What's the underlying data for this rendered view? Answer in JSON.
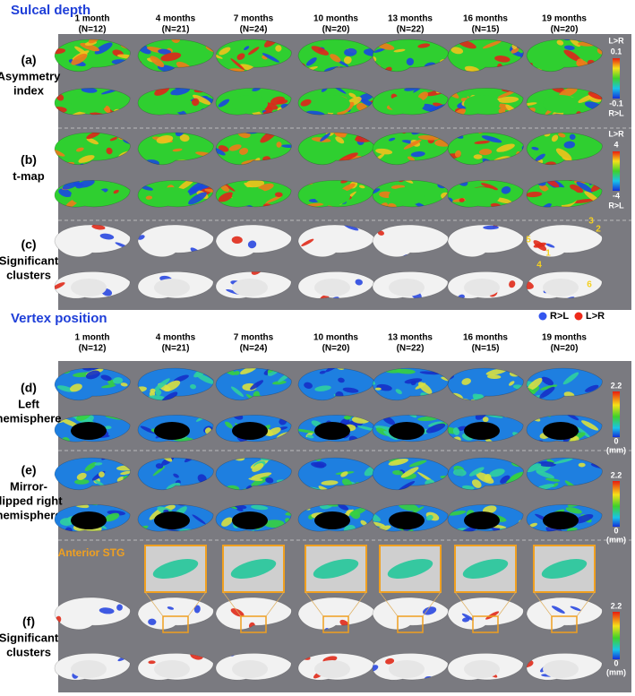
{
  "sections": [
    {
      "title": "Sulcal depth",
      "columns": [
        {
          "month": "1 month",
          "n": "(N=12)"
        },
        {
          "month": "4 months",
          "n": "(N=21)"
        },
        {
          "month": "7 months",
          "n": "(N=24)"
        },
        {
          "month": "10 months",
          "n": "(N=20)"
        },
        {
          "month": "13 months",
          "n": "(N=22)"
        },
        {
          "month": "16 months",
          "n": "(N=15)"
        },
        {
          "month": "19 months",
          "n": "(N=20)"
        }
      ],
      "rows": [
        {
          "letter": "(a)",
          "label": [
            "Asymmetry",
            "index"
          ],
          "colorbar": {
            "top_sign": "L>R",
            "max": "0.1",
            "min": "-0.1",
            "bottom_sign": "R>L"
          }
        },
        {
          "letter": "(b)",
          "label": [
            "t-map"
          ],
          "colorbar": {
            "top_sign": "L>R",
            "max": "4",
            "min": "-4",
            "bottom_sign": "R>L"
          }
        },
        {
          "letter": "(c)",
          "label": [
            "Significant",
            "clusters"
          ],
          "cluster_labels": [
            "1",
            "2",
            "3",
            "4",
            "5",
            "6"
          ]
        }
      ],
      "legend": [
        {
          "name": "R>L",
          "color": "#3355ee"
        },
        {
          "name": "L>R",
          "color": "#ee2a1a"
        }
      ]
    },
    {
      "title": "Vertex position",
      "columns": [
        {
          "month": "1 month",
          "n": "(N=12)"
        },
        {
          "month": "4 months",
          "n": "(N=21)"
        },
        {
          "month": "7 months",
          "n": "(N=24)"
        },
        {
          "month": "10 months",
          "n": "(N=20)"
        },
        {
          "month": "13 months",
          "n": "(N=22)"
        },
        {
          "month": "16 months",
          "n": "(N=15)"
        },
        {
          "month": "19 months",
          "n": "(N=20)"
        }
      ],
      "rows": [
        {
          "letter": "(d)",
          "label": [
            "Left",
            "hemisphere"
          ],
          "colorbar": {
            "max": "2.2",
            "min": "0",
            "unit": "(mm)"
          }
        },
        {
          "letter": "(e)",
          "label": [
            "Mirror-",
            "flipped right",
            "hemisphere"
          ],
          "colorbar": {
            "max": "2.2",
            "min": "0",
            "unit": "(mm)"
          }
        },
        {
          "letter": "(f)",
          "label": [
            "Significant",
            "clusters"
          ],
          "colorbar": {
            "max": "2.2",
            "min": "0",
            "unit": "(mm)"
          },
          "inset_label": "Anterior STG"
        }
      ]
    }
  ]
}
